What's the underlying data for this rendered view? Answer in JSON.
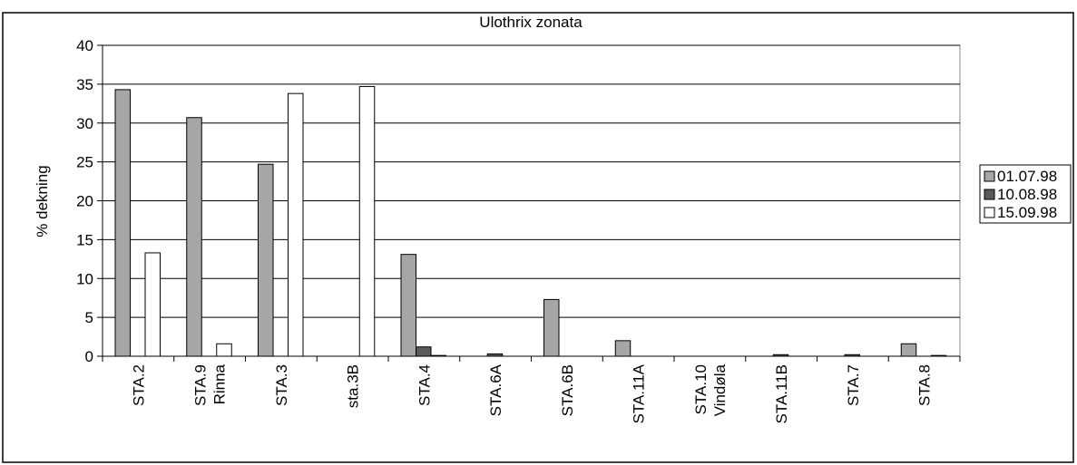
{
  "chart_data": {
    "type": "bar",
    "title": "Ulothrix zonata",
    "y_label": "% dekning",
    "categories": [
      [
        "STA.2"
      ],
      [
        "STA.9",
        "Rinna"
      ],
      [
        "STA.3"
      ],
      [
        "sta.3B"
      ],
      [
        "STA.4"
      ],
      [
        "STA.6A"
      ],
      [
        "STA.6B"
      ],
      [
        "STA.11A"
      ],
      [
        "STA.10",
        "Vindøla"
      ],
      [
        "STA.11B"
      ],
      [
        "STA.7"
      ],
      [
        "STA.8"
      ]
    ],
    "series": [
      {
        "name": "01.07.98",
        "color": "#a6a6a6",
        "values": [
          34.3,
          30.7,
          24.7,
          0,
          13.1,
          0,
          7.3,
          2,
          0,
          0,
          0,
          1.6
        ]
      },
      {
        "name": "10.08.98",
        "color": "#5a5a5a",
        "values": [
          0,
          0,
          0,
          0,
          1.2,
          0.3,
          0,
          0,
          0,
          0.2,
          0.2,
          0
        ]
      },
      {
        "name": "15.09.98",
        "color": "#ffffff",
        "values": [
          13.3,
          1.6,
          33.8,
          34.7,
          0.1,
          0,
          0,
          0,
          0,
          0,
          0,
          0.1
        ]
      }
    ],
    "ylim": [
      0,
      40
    ],
    "yticks": [
      0,
      5,
      10,
      15,
      20,
      25,
      30,
      35,
      40
    ],
    "grid": true,
    "legend": "right"
  }
}
